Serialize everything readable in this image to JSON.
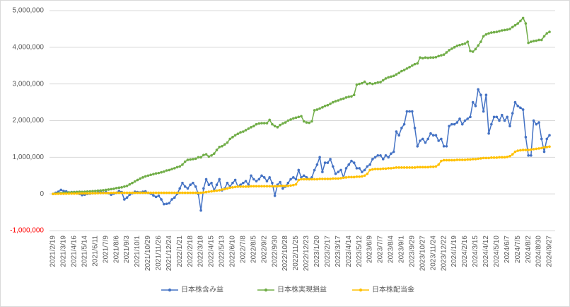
{
  "chart_data": {
    "type": "line",
    "categories": [
      "2021/2/19",
      null,
      null,
      null,
      "2021/3/19",
      null,
      null,
      null,
      "2021/4/16",
      null,
      null,
      null,
      "2021/5/14",
      null,
      null,
      null,
      "2021/6/11",
      null,
      null,
      null,
      "2021/7/9",
      null,
      null,
      null,
      "2021/8/6",
      null,
      null,
      null,
      "2021/9/3",
      null,
      null,
      null,
      "2021/10/1",
      null,
      null,
      null,
      "2021/10/29",
      null,
      null,
      null,
      "2021/11/26",
      null,
      null,
      null,
      "2021/12/24",
      null,
      null,
      null,
      "2022/1/21",
      null,
      null,
      null,
      "2022/2/18",
      null,
      null,
      null,
      "2022/3/18",
      null,
      null,
      null,
      "2022/4/15",
      null,
      null,
      null,
      "2022/5/13",
      null,
      null,
      null,
      "2022/6/10",
      null,
      null,
      null,
      "2022/7/8",
      null,
      null,
      null,
      "2022/8/5",
      null,
      null,
      null,
      "2022/9/2",
      null,
      null,
      null,
      "2022/9/30",
      null,
      null,
      null,
      "2022/10/28",
      null,
      null,
      null,
      "2022/11/25",
      null,
      null,
      null,
      "2022/12/23",
      null,
      null,
      null,
      "2023/1/20",
      null,
      null,
      null,
      "2023/2/17",
      null,
      null,
      null,
      "2023/3/17",
      null,
      null,
      null,
      "2023/4/14",
      null,
      null,
      null,
      "2023/5/12",
      null,
      null,
      null,
      "2023/6/9",
      null,
      null,
      null,
      "2023/7/7",
      null,
      null,
      null,
      "2023/8/4",
      null,
      null,
      null,
      "2023/9/1",
      null,
      null,
      null,
      "2023/9/29",
      null,
      null,
      null,
      "2023/10/27",
      null,
      null,
      null,
      "2023/11/24",
      null,
      null,
      null,
      "2023/12/22",
      null,
      null,
      null,
      "2024/1/19",
      null,
      null,
      null,
      "2024/2/16",
      null,
      null,
      null,
      "2024/3/15",
      null,
      null,
      null,
      "2024/4/12",
      null,
      null,
      null,
      "2024/5/10",
      null,
      null,
      null,
      "2024/6/7",
      null,
      null,
      null,
      "2024/7/5",
      null,
      null,
      null,
      "2024/8/2",
      null,
      null,
      null,
      "2024/8/30",
      null,
      null,
      null,
      "2024/9/27"
    ],
    "series": [
      {
        "name": "日本株含み益",
        "color": "#4472c4",
        "values": [
          0,
          30000,
          60000,
          110000,
          80000,
          70000,
          40000,
          50000,
          50000,
          30000,
          0,
          -30000,
          -20000,
          0,
          10000,
          20000,
          20000,
          40000,
          60000,
          30000,
          50000,
          20000,
          -20000,
          10000,
          30000,
          80000,
          50000,
          -150000,
          -100000,
          -20000,
          20000,
          60000,
          50000,
          40000,
          60000,
          70000,
          30000,
          10000,
          -40000,
          -80000,
          -50000,
          -150000,
          -280000,
          -270000,
          -250000,
          -150000,
          -100000,
          0,
          150000,
          300000,
          200000,
          150000,
          250000,
          300000,
          200000,
          0,
          -450000,
          150000,
          400000,
          250000,
          300000,
          100000,
          250000,
          400000,
          100000,
          150000,
          300000,
          200000,
          300000,
          380000,
          200000,
          250000,
          300000,
          350000,
          250000,
          500000,
          400000,
          350000,
          400000,
          500000,
          450000,
          350000,
          450000,
          300000,
          -50000,
          250000,
          320000,
          150000,
          200000,
          300000,
          400000,
          450000,
          400000,
          650000,
          450000,
          500000,
          450000,
          400000,
          450000,
          650000,
          800000,
          1000000,
          600000,
          850000,
          850000,
          950000,
          750000,
          550000,
          600000,
          650000,
          450000,
          700000,
          800000,
          900000,
          850000,
          700000,
          700000,
          600000,
          650000,
          750000,
          800000,
          950000,
          1000000,
          1050000,
          1050000,
          950000,
          1050000,
          1000000,
          1100000,
          1150000,
          1700000,
          1600000,
          1800000,
          1900000,
          2250000,
          2250000,
          2250000,
          1800000,
          1300000,
          1450000,
          1500000,
          1400000,
          1500000,
          1650000,
          1600000,
          1600000,
          1450000,
          1500000,
          1300000,
          1300000,
          1850000,
          1900000,
          1900000,
          1950000,
          2050000,
          1900000,
          2000000,
          2050000,
          2100000,
          2500000,
          2400000,
          2850000,
          2700000,
          2250000,
          2700000,
          1650000,
          1900000,
          2100000,
          2100000,
          2000000,
          2150000,
          2000000,
          2100000,
          1850000,
          2200000,
          2500000,
          2400000,
          2350000,
          2300000,
          1550000,
          1050000,
          1050000,
          2000000,
          1900000,
          1950000,
          1500000,
          1150000,
          1500000,
          1600000
        ]
      },
      {
        "name": "日本株実現損益",
        "color": "#70ad47",
        "values": [
          0,
          10000,
          20000,
          25000,
          30000,
          35000,
          40000,
          45000,
          50000,
          55000,
          60000,
          55000,
          60000,
          65000,
          70000,
          75000,
          80000,
          90000,
          95000,
          100000,
          110000,
          120000,
          130000,
          140000,
          160000,
          170000,
          180000,
          200000,
          220000,
          260000,
          300000,
          340000,
          380000,
          420000,
          450000,
          480000,
          500000,
          520000,
          540000,
          560000,
          570000,
          590000,
          610000,
          640000,
          650000,
          680000,
          700000,
          730000,
          750000,
          800000,
          880000,
          930000,
          940000,
          950000,
          960000,
          1000000,
          1000000,
          1060000,
          1080000,
          1020000,
          1050000,
          1100000,
          1200000,
          1280000,
          1300000,
          1350000,
          1400000,
          1500000,
          1550000,
          1600000,
          1640000,
          1680000,
          1700000,
          1740000,
          1780000,
          1820000,
          1850000,
          1900000,
          1920000,
          1930000,
          1930000,
          1930000,
          2020000,
          1900000,
          1850000,
          1820000,
          1880000,
          1920000,
          1950000,
          2000000,
          2030000,
          2060000,
          2080000,
          2100000,
          2120000,
          1980000,
          1950000,
          1940000,
          1980000,
          2280000,
          2300000,
          2330000,
          2360000,
          2400000,
          2420000,
          2460000,
          2500000,
          2530000,
          2550000,
          2580000,
          2600000,
          2630000,
          2650000,
          2660000,
          2700000,
          2980000,
          3000000,
          3020000,
          3060000,
          3000000,
          3020000,
          3000000,
          3020000,
          3040000,
          3050000,
          3100000,
          3150000,
          3180000,
          3200000,
          3220000,
          3260000,
          3300000,
          3350000,
          3380000,
          3420000,
          3460000,
          3500000,
          3540000,
          3560000,
          3720000,
          3700000,
          3720000,
          3710000,
          3720000,
          3720000,
          3730000,
          3760000,
          3780000,
          3800000,
          3860000,
          3920000,
          3960000,
          4000000,
          4040000,
          4060000,
          4080000,
          4100000,
          4150000,
          3900000,
          3880000,
          3950000,
          4050000,
          4150000,
          4300000,
          4350000,
          4380000,
          4400000,
          4410000,
          4420000,
          4440000,
          4460000,
          4470000,
          4480000,
          4500000,
          4550000,
          4600000,
          4650000,
          4720000,
          4800000,
          4650000,
          4120000,
          4150000,
          4170000,
          4180000,
          4200000,
          4200000,
          4300000,
          4380000,
          4420000
        ]
      },
      {
        "name": "日本株配当金",
        "color": "#ffc000",
        "values": [
          0,
          2000,
          4000,
          5000,
          5000,
          6000,
          8000,
          10000,
          10000,
          12000,
          14000,
          15000,
          15000,
          16000,
          18000,
          20000,
          20000,
          22000,
          24000,
          25000,
          25000,
          26000,
          28000,
          30000,
          30000,
          30000,
          30000,
          30000,
          30000,
          30000,
          30000,
          30000,
          30000,
          30000,
          30000,
          30000,
          30000,
          30000,
          30000,
          30000,
          30000,
          30000,
          30000,
          30000,
          30000,
          30000,
          30000,
          30000,
          30000,
          30000,
          30000,
          30000,
          30000,
          30000,
          30000,
          30000,
          30000,
          40000,
          50000,
          60000,
          70000,
          80000,
          90000,
          100000,
          120000,
          130000,
          150000,
          170000,
          180000,
          190000,
          200000,
          200000,
          200000,
          200000,
          200000,
          210000,
          210000,
          210000,
          210000,
          210000,
          210000,
          210000,
          210000,
          210000,
          210000,
          210000,
          220000,
          220000,
          220000,
          220000,
          230000,
          240000,
          260000,
          380000,
          400000,
          400000,
          400000,
          400000,
          400000,
          400000,
          400000,
          410000,
          410000,
          410000,
          410000,
          410000,
          420000,
          420000,
          420000,
          430000,
          440000,
          450000,
          460000,
          460000,
          460000,
          470000,
          470000,
          480000,
          500000,
          550000,
          650000,
          670000,
          680000,
          680000,
          680000,
          690000,
          690000,
          700000,
          700000,
          710000,
          720000,
          720000,
          720000,
          720000,
          720000,
          720000,
          720000,
          720000,
          730000,
          730000,
          730000,
          730000,
          730000,
          740000,
          740000,
          750000,
          800000,
          900000,
          920000,
          920000,
          920000,
          920000,
          920000,
          930000,
          930000,
          930000,
          930000,
          940000,
          940000,
          950000,
          950000,
          960000,
          970000,
          980000,
          980000,
          980000,
          990000,
          990000,
          990000,
          1000000,
          1000000,
          1000000,
          1010000,
          1030000,
          1080000,
          1150000,
          1180000,
          1190000,
          1200000,
          1200000,
          1200000,
          1210000,
          1220000,
          1230000,
          1240000,
          1250000,
          1270000,
          1280000,
          1290000
        ]
      }
    ],
    "ylim": [
      -1000000,
      5000000
    ],
    "yticks": [
      {
        "value": -1000000,
        "label": "-1,000,000"
      },
      0,
      {
        "value": 1000000,
        "label": "1,000,000"
      },
      {
        "value": 2000000,
        "label": "2,000,000"
      },
      {
        "value": 3000000,
        "label": "3,000,000"
      },
      {
        "value": 4000000,
        "label": "4,000,000"
      },
      {
        "value": 5000000,
        "label": "5,000,000"
      }
    ],
    "grid": true,
    "legend": "bottom",
    "negative_tick_color": "#ff0000"
  }
}
